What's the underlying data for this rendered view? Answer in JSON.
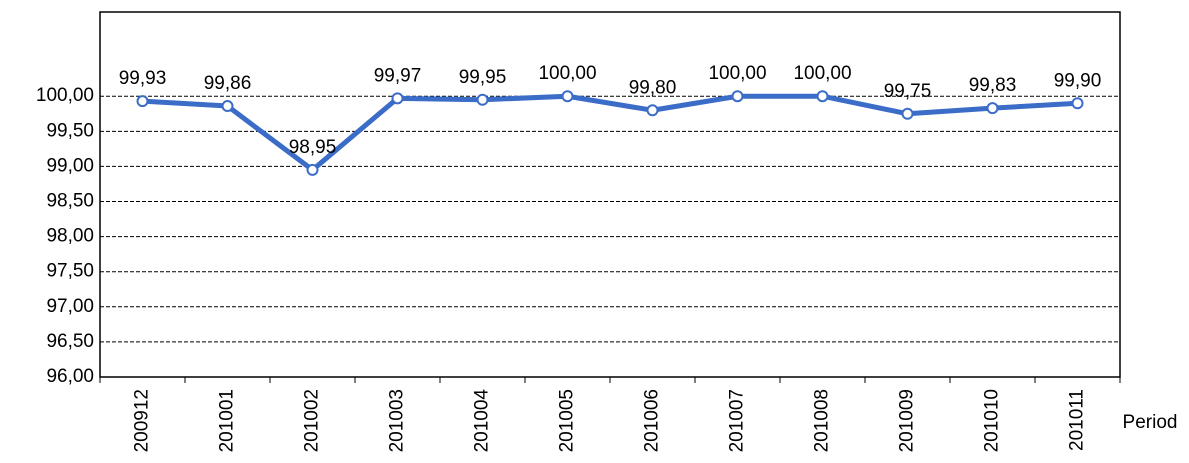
{
  "chart_data": {
    "type": "line",
    "x_label": "Period",
    "categories": [
      "200912",
      "201001",
      "201002",
      "201003",
      "201004",
      "201005",
      "201006",
      "201007",
      "201008",
      "201009",
      "201010",
      "201011"
    ],
    "series": [
      {
        "name": "Value",
        "color": "#3b6cc8",
        "values": [
          99.93,
          99.86,
          98.95,
          99.97,
          99.95,
          100.0,
          99.8,
          100.0,
          100.0,
          99.75,
          99.83,
          99.9
        ],
        "value_labels": [
          "99,93",
          "99,86",
          "98,95",
          "99,97",
          "99,95",
          "100,00",
          "99,80",
          "100,00",
          "100,00",
          "99,75",
          "99,83",
          "99,90"
        ]
      }
    ],
    "ylim": [
      96,
      101.2
    ],
    "yticks": [
      {
        "value": 96,
        "label": "96,00"
      },
      {
        "value": 96.5,
        "label": "96,50"
      },
      {
        "value": 97,
        "label": "97,00"
      },
      {
        "value": 97.5,
        "label": "97,50"
      },
      {
        "value": 98,
        "label": "98,00"
      },
      {
        "value": 98.5,
        "label": "98,50"
      },
      {
        "value": 99,
        "label": "99,00"
      },
      {
        "value": 99.5,
        "label": "99,50"
      },
      {
        "value": 100,
        "label": "100,00"
      }
    ],
    "grid": true
  }
}
